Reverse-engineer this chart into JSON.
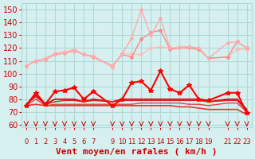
{
  "background_color": "#d6f0f0",
  "grid_color": "#b0d8d8",
  "xlabel": "Vent moyen/en rafales ( km/h )",
  "xlabel_color": "#cc0000",
  "xlabel_fontsize": 8,
  "yticks": [
    60,
    70,
    80,
    90,
    100,
    110,
    120,
    130,
    140,
    150
  ],
  "ylim": [
    58,
    155
  ],
  "xlim": [
    -0.5,
    23.5
  ],
  "xtick_positions": [
    0,
    1,
    2,
    3,
    4,
    5,
    6,
    7,
    9,
    10,
    11,
    12,
    13,
    14,
    15,
    16,
    17,
    18,
    19,
    21,
    22,
    23
  ],
  "xtick_labels": [
    "0",
    "1",
    "2",
    "3",
    "4",
    "5",
    "6",
    "7",
    "9",
    "10",
    "11",
    "12",
    "13",
    "14",
    "15",
    "16",
    "17",
    "18",
    "19",
    "21",
    "22",
    "23"
  ],
  "series": [
    {
      "x": [
        0,
        1,
        2,
        3,
        4,
        5,
        6,
        7,
        9,
        10,
        11,
        12,
        13,
        14,
        15,
        16,
        17,
        18,
        19,
        21,
        22,
        23
      ],
      "y": [
        106,
        110,
        112,
        116,
        117,
        119,
        115,
        114,
        105,
        116,
        115,
        115,
        120,
        121,
        120,
        121,
        121,
        120,
        112,
        113,
        119,
        119
      ],
      "color": "#ffbbbb",
      "linewidth": 1.0,
      "marker": "D",
      "markersize": 2.0,
      "zorder": 2
    },
    {
      "x": [
        0,
        1,
        2,
        3,
        4,
        5,
        6,
        7,
        9,
        10,
        11,
        12,
        13,
        14,
        15,
        16,
        17,
        18,
        19,
        21,
        22,
        23
      ],
      "y": [
        106,
        110,
        111,
        115,
        116,
        118,
        115,
        113,
        106,
        115,
        113,
        127,
        132,
        134,
        119,
        120,
        120,
        119,
        112,
        113,
        125,
        120
      ],
      "color": "#ff8888",
      "linewidth": 1.0,
      "marker": "D",
      "markersize": 2.0,
      "zorder": 3
    },
    {
      "x": [
        0,
        1,
        2,
        3,
        4,
        5,
        6,
        7,
        9,
        10,
        11,
        12,
        13,
        14,
        15,
        16,
        17,
        18,
        19,
        21,
        22,
        23
      ],
      "y": [
        106,
        110,
        111,
        115,
        116,
        118,
        115,
        113,
        106,
        115,
        128,
        150,
        130,
        143,
        120,
        120,
        121,
        120,
        112,
        124,
        125,
        120
      ],
      "color": "#ffaaaa",
      "linewidth": 1.0,
      "marker": "D",
      "markersize": 2.0,
      "zorder": 4
    },
    {
      "x": [
        0,
        1,
        2,
        3,
        4,
        5,
        6,
        7,
        9,
        10,
        11,
        12,
        13,
        14,
        15,
        16,
        17,
        18,
        19,
        21,
        22,
        23
      ],
      "y": [
        75,
        85,
        76,
        86,
        87,
        89,
        80,
        86,
        75,
        80,
        93,
        94,
        87,
        102,
        88,
        85,
        91,
        80,
        79,
        85,
        85,
        69
      ],
      "color": "#ff0000",
      "linewidth": 1.5,
      "marker": "*",
      "markersize": 4,
      "zorder": 6
    },
    {
      "x": [
        0,
        1,
        2,
        3,
        4,
        5,
        6,
        7,
        9,
        10,
        11,
        12,
        13,
        14,
        15,
        16,
        17,
        18,
        19,
        21,
        22,
        23
      ],
      "y": [
        76,
        83,
        76,
        80,
        80,
        80,
        78,
        80,
        78,
        80,
        80,
        80,
        80,
        80,
        80,
        80,
        80,
        80,
        78,
        80,
        80,
        72
      ],
      "color": "#cc0000",
      "linewidth": 1.2,
      "marker": null,
      "zorder": 5
    },
    {
      "x": [
        0,
        1,
        2,
        3,
        4,
        5,
        6,
        7,
        9,
        10,
        11,
        12,
        13,
        14,
        15,
        16,
        17,
        18,
        19,
        21,
        22,
        23
      ],
      "y": [
        76,
        82,
        76,
        78,
        79,
        79,
        78,
        79,
        78,
        79,
        79,
        79,
        79,
        79,
        79,
        79,
        79,
        79,
        78,
        79,
        79,
        71
      ],
      "color": "#dd2222",
      "linewidth": 1.0,
      "marker": null,
      "zorder": 5
    },
    {
      "x": [
        0,
        1,
        2,
        3,
        4,
        5,
        6,
        7,
        9,
        10,
        11,
        12,
        13,
        14,
        15,
        16,
        17,
        18,
        19,
        21,
        22,
        23
      ],
      "y": [
        75,
        80,
        75,
        76,
        76,
        76,
        76,
        76,
        76,
        76,
        76,
        77,
        77,
        77,
        77,
        77,
        76,
        76,
        75,
        77,
        77,
        70
      ],
      "color": "#dd4444",
      "linewidth": 1.0,
      "marker": null,
      "zorder": 5
    },
    {
      "x": [
        0,
        1,
        2,
        3,
        4,
        5,
        6,
        7,
        9,
        10,
        11,
        12,
        13,
        14,
        15,
        16,
        17,
        18,
        19,
        21,
        22,
        23
      ],
      "y": [
        75,
        76,
        75,
        75,
        75,
        75,
        75,
        75,
        75,
        75,
        75,
        75,
        75,
        75,
        75,
        74,
        74,
        73,
        72,
        72,
        72,
        68
      ],
      "color": "#ee3333",
      "linewidth": 1.2,
      "marker": null,
      "zorder": 5
    }
  ],
  "arrow_color": "#cc0000",
  "tick_color": "#cc0000"
}
